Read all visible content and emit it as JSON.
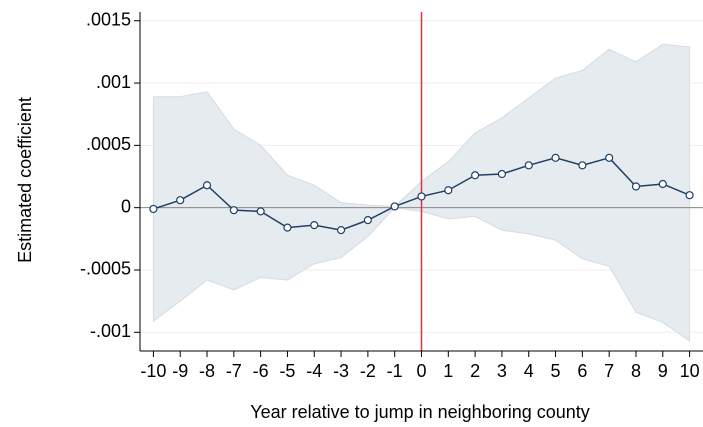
{
  "chart_data": {
    "type": "line",
    "x_label": "Year relative to jump in neighboring county",
    "y_label": "Estimated coefficient",
    "x": [
      -10,
      -9,
      -8,
      -7,
      -6,
      -5,
      -4,
      -3,
      -2,
      -1,
      0,
      1,
      2,
      3,
      4,
      5,
      6,
      7,
      8,
      9,
      10
    ],
    "series": [
      {
        "name": "Estimated coefficient",
        "color": "#1f3f66",
        "values": [
          -1e-05,
          6e-05,
          0.00018,
          -2e-05,
          -3e-05,
          -0.00016,
          -0.00014,
          -0.00018,
          -0.0001,
          1e-05,
          9e-05,
          0.00014,
          0.00026,
          0.00027,
          0.00034,
          0.0004,
          0.00034,
          0.0004,
          0.00017,
          0.00019,
          0.0001
        ],
        "upper": [
          0.00089,
          0.00089,
          0.00093,
          0.00063,
          0.0005,
          0.00026,
          0.00018,
          4e-05,
          2e-05,
          1e-05,
          0.00021,
          0.00037,
          0.0006,
          0.00072,
          0.00088,
          0.00104,
          0.0011,
          0.00127,
          0.00117,
          0.00131,
          0.00129
        ],
        "lower": [
          -0.00091,
          -0.00075,
          -0.00058,
          -0.00066,
          -0.00056,
          -0.00058,
          -0.00045,
          -0.0004,
          -0.00023,
          0,
          -3e-05,
          -9e-05,
          -7e-05,
          -0.00018,
          -0.00021,
          -0.00026,
          -0.00041,
          -0.00047,
          -0.00084,
          -0.00092,
          -0.00107
        ],
        "band_color": "#e6ebf0"
      }
    ],
    "xlim": [
      -10.5,
      10.5
    ],
    "ylim": [
      -0.00115,
      0.00157
    ],
    "xticks": [
      -10,
      -9,
      -8,
      -7,
      -6,
      -5,
      -4,
      -3,
      -2,
      -1,
      0,
      1,
      2,
      3,
      4,
      5,
      6,
      7,
      8,
      9,
      10
    ],
    "yticks": [
      {
        "value": -0.001,
        "label": "-.001"
      },
      {
        "value": -0.0005,
        "label": "-.0005"
      },
      0,
      {
        "value": 0.0005,
        "label": ".0005"
      },
      {
        "value": 0.001,
        "label": ".001"
      },
      {
        "value": 0.0015,
        "label": ".0015"
      }
    ],
    "grid": true,
    "vline": {
      "value": 0,
      "color": "#e0333a"
    },
    "hline": {
      "value": 0,
      "color": "#888888"
    }
  }
}
